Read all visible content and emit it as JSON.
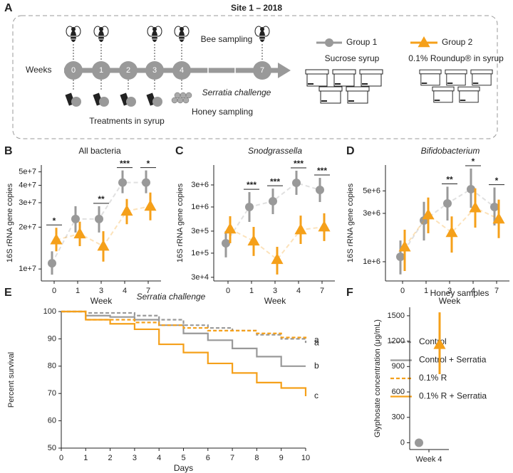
{
  "panel_labels": [
    "A",
    "B",
    "C",
    "D",
    "E",
    "F"
  ],
  "diagram": {
    "title": "Site 1 – 2018",
    "weeks_label": "Weeks",
    "weeks": [
      "0",
      "1",
      "2",
      "3",
      "4",
      "7"
    ],
    "bee_sampling": "Bee sampling",
    "serratia_challenge": "Serratia challenge",
    "treatments": "Treatments in syrup",
    "honey_sampling": "Honey sampling",
    "group1_treatment": "Sucrose syrup",
    "group2_treatment": "0.1% Roundup® in syrup"
  },
  "chart_data": [
    {
      "type": "dot",
      "title": "All bacteria",
      "xlabel": "Week",
      "ylabel": "16S rRNA gene copies",
      "log_y": true,
      "categories": [
        "0",
        "1",
        "3",
        "4",
        "7"
      ],
      "ylim": [
        8200000,
        56000000
      ],
      "yticks": [
        {
          "value": 10000000,
          "label": "1e+7"
        },
        {
          "value": 20000000,
          "label": "2e+7"
        },
        {
          "value": 30000000,
          "label": "3e+7"
        },
        {
          "value": 40000000,
          "label": "4e+7"
        },
        {
          "value": 50000000,
          "label": "5e+7"
        }
      ],
      "series": [
        {
          "name": "Group 1",
          "color": "#999999",
          "marker": "circle",
          "values": [
            11000000,
            22900000,
            22900000,
            41900000,
            41900000
          ],
          "low": [
            9100000,
            18300000,
            18300000,
            35100000,
            35100000
          ],
          "high": [
            13400000,
            28300000,
            28300000,
            51200000,
            51200000
          ]
        },
        {
          "name": "Group 2",
          "color": "#f5a01a",
          "marker": "triangle",
          "values": [
            16200000,
            17900000,
            14600000,
            26100000,
            28300000
          ],
          "low": [
            13400000,
            14600000,
            11300000,
            21000000,
            22400000
          ],
          "high": [
            19800000,
            21900000,
            18700000,
            31900000,
            35500000
          ]
        }
      ],
      "significance": [
        "*",
        null,
        "**",
        "***",
        "*"
      ]
    },
    {
      "type": "dot",
      "title": "Snodgrassella",
      "title_italic": true,
      "xlabel": "Week",
      "ylabel": "16S rRNA gene copies",
      "log_y": true,
      "categories": [
        "0",
        "1",
        "3",
        "4",
        "7"
      ],
      "ylim": [
        25000,
        8100000
      ],
      "yticks": [
        {
          "value": 30000,
          "label": "3e+4"
        },
        {
          "value": 100000,
          "label": "1e+5"
        },
        {
          "value": 300000,
          "label": "3e+5"
        },
        {
          "value": 1000000,
          "label": "1e+6"
        },
        {
          "value": 3000000,
          "label": "3e+6"
        }
      ],
      "series": [
        {
          "color": "#999999",
          "marker": "circle",
          "values": [
            164000,
            1000000,
            1330000,
            3330000,
            2340000
          ],
          "low": [
            81000,
            475000,
            700000,
            1830000,
            1280000
          ],
          "high": [
            300000,
            2100000,
            2500000,
            6100000,
            4270000
          ]
        },
        {
          "color": "#f5a01a",
          "marker": "triangle",
          "values": [
            333000,
            183000,
            73000,
            320000,
            370000
          ],
          "low": [
            164000,
            87000,
            34500,
            158000,
            183000
          ],
          "high": [
            630000,
            370000,
            137000,
            650000,
            730000
          ]
        }
      ],
      "significance": [
        null,
        "***",
        "***",
        "***",
        "***"
      ]
    },
    {
      "type": "dot",
      "title": "Bifidobacterium",
      "title_italic": true,
      "xlabel": "Week",
      "ylabel": "16S rRNA gene copies",
      "log_y": true,
      "categories": [
        "0",
        "1",
        "3",
        "4",
        "7"
      ],
      "ylim": [
        646000,
        9000000
      ],
      "yticks": [
        {
          "value": 1000000,
          "label": "1e+6"
        },
        {
          "value": 3000000,
          "label": "3e+6"
        },
        {
          "value": 5000000,
          "label": "5e+6"
        }
      ],
      "series": [
        {
          "color": "#999999",
          "marker": "circle",
          "values": [
            1120000,
            2550000,
            3760000,
            5200000,
            3470000
          ],
          "low": [
            750000,
            1620000,
            2550000,
            3400000,
            2280000
          ],
          "high": [
            1620000,
            3900000,
            5500000,
            8300000,
            5400000
          ]
        },
        {
          "color": "#f5a01a",
          "marker": "triangle",
          "values": [
            1400000,
            2900000,
            1940000,
            3400000,
            2640000
          ],
          "low": [
            810000,
            1910000,
            1230000,
            2170000,
            1710000
          ],
          "high": [
            2070000,
            4300000,
            2800000,
            5300000,
            4100000
          ]
        }
      ],
      "significance": [
        null,
        null,
        "**",
        "*",
        "*"
      ]
    },
    {
      "type": "step",
      "title": "Serratia challenge",
      "title_italic": true,
      "xlabel": "Days",
      "ylabel": "Percent survival",
      "x": [
        0,
        1,
        2,
        3,
        4,
        5,
        6,
        7,
        8,
        9,
        10
      ],
      "xlim": [
        0,
        10
      ],
      "xticks": [
        0,
        1,
        2,
        3,
        4,
        5,
        6,
        7,
        8,
        9,
        10
      ],
      "ylim": [
        50,
        100
      ],
      "yticks": [
        50,
        60,
        70,
        80,
        90,
        100
      ],
      "series": [
        {
          "name": "Control",
          "color": "#999999",
          "dashed": true,
          "values": [
            100,
            99.5,
            99.5,
            98.5,
            97,
            95,
            94,
            93,
            91.5,
            90,
            88.5
          ],
          "end_label": "a"
        },
        {
          "name": "Control + Serratia",
          "color": "#999999",
          "dashed": false,
          "values": [
            100,
            98.5,
            98,
            97,
            95,
            92,
            89.5,
            86.5,
            83.5,
            80,
            80
          ],
          "end_label": "b"
        },
        {
          "name": "0.1% R",
          "color": "#f5a01a",
          "dashed": true,
          "values": [
            100,
            97,
            97,
            96,
            95,
            94,
            93,
            93,
            92,
            90.5,
            89.5
          ],
          "end_label": "a"
        },
        {
          "name": "0.1% R + Serratia",
          "color": "#f5a01a",
          "dashed": false,
          "values": [
            100,
            97,
            95.5,
            93.5,
            88,
            85,
            81,
            77.5,
            74,
            72,
            69
          ],
          "end_label": "c"
        }
      ]
    },
    {
      "type": "dot",
      "title": "Honey samples",
      "ylabel": "Glyphosate concentration (μg/mL)",
      "categories": [
        "Week 4"
      ],
      "ylim": [
        -80,
        1600
      ],
      "yticks": [
        0,
        300,
        600,
        900,
        1200,
        1500
      ],
      "series": [
        {
          "color": "#999999",
          "marker": "circle",
          "values": [
            0
          ]
        },
        {
          "color": "#f5a01a",
          "marker": "triangle",
          "values": [
            1160
          ],
          "low": [
            810
          ],
          "high": [
            1540
          ]
        }
      ]
    }
  ]
}
